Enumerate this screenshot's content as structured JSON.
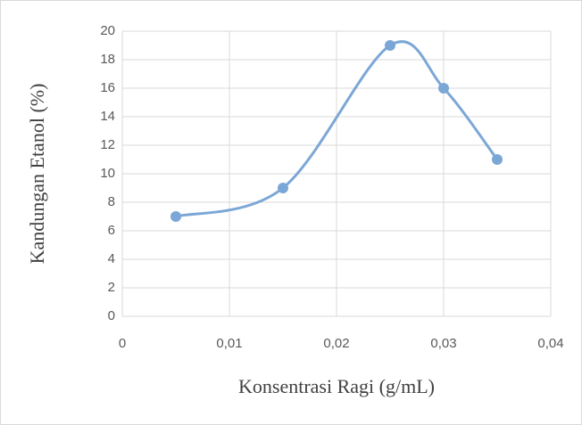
{
  "chart_data": {
    "type": "scatter",
    "smooth": true,
    "x_label": "Konsentrasi Ragi (g/mL)",
    "y_label": "Kandungan Etanol (%)",
    "x": [
      0.005,
      0.015,
      0.025,
      0.03,
      0.035
    ],
    "series": [
      {
        "color": "#7ba7d7",
        "values": [
          7,
          9,
          19,
          16,
          11
        ]
      }
    ],
    "xlim": [
      0,
      0.04
    ],
    "xticks": [
      0,
      {
        "value": 0.01,
        "label": "0,01"
      },
      {
        "value": 0.02,
        "label": "0,02"
      },
      {
        "value": 0.03,
        "label": "0,03"
      },
      {
        "value": 0.04,
        "label": "0,04"
      }
    ],
    "ylim": [
      0,
      20
    ],
    "yticks": [
      0,
      2,
      4,
      6,
      8,
      10,
      12,
      14,
      16,
      18,
      20
    ],
    "grid": true
  }
}
